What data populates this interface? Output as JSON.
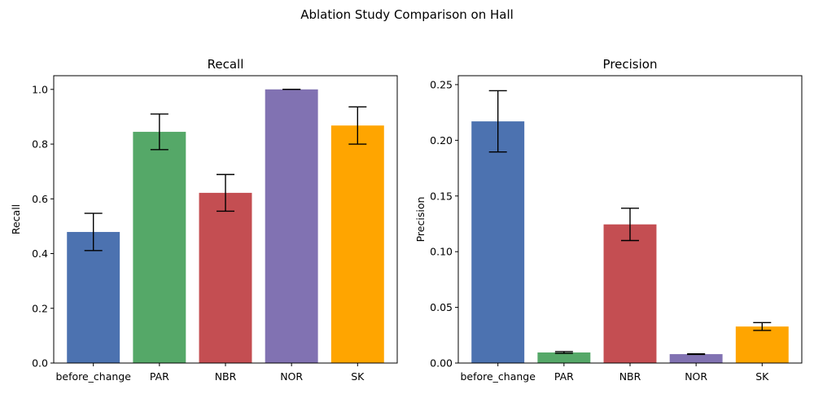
{
  "suptitle": "Ablation Study Comparison on Hall",
  "colors": [
    "#4c72b0",
    "#55a868",
    "#c44e52",
    "#8172b2",
    "#ffa500"
  ],
  "chart_data": [
    {
      "type": "bar",
      "title": "Recall",
      "xlabel": "",
      "ylabel": "Recall",
      "categories": [
        "before_change",
        "PAR",
        "NBR",
        "NOR",
        "SK"
      ],
      "values": [
        0.479,
        0.845,
        0.622,
        1.0,
        0.868
      ],
      "errors": [
        0.068,
        0.065,
        0.067,
        0.0,
        0.068
      ],
      "ylim": [
        0,
        1.05
      ],
      "yticks": [
        0.0,
        0.2,
        0.4,
        0.6,
        0.8,
        1.0
      ],
      "ytick_labels": [
        "0.0",
        "0.2",
        "0.4",
        "0.6",
        "0.8",
        "1.0"
      ],
      "grid": false
    },
    {
      "type": "bar",
      "title": "Precision",
      "xlabel": "",
      "ylabel": "Precision",
      "categories": [
        "before_change",
        "PAR",
        "NBR",
        "NOR",
        "SK"
      ],
      "values": [
        0.217,
        0.0095,
        0.1245,
        0.008,
        0.0328
      ],
      "errors": [
        0.0275,
        0.0008,
        0.0145,
        0.0003,
        0.0035
      ],
      "ylim": [
        0,
        0.258
      ],
      "yticks": [
        0.0,
        0.05,
        0.1,
        0.15,
        0.2,
        0.25
      ],
      "ytick_labels": [
        "0.00",
        "0.05",
        "0.10",
        "0.15",
        "0.20",
        "0.25"
      ],
      "grid": false
    }
  ]
}
